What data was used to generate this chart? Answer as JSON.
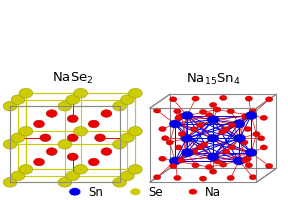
{
  "bg_color": "#ffffff",
  "title_left": "NaSe$_2$",
  "title_right": "Na$_{15}$Sn$_4$",
  "title_fontsize": 9.5,
  "colors": {
    "Sn": "#0000ee",
    "Se": "#cccc00",
    "Na": "#ee0000",
    "bond_na_se": "#ee0000",
    "bond_se_se": "#cccc00",
    "bond_sn": "#0000ee",
    "bond_sn_na": "#ee0000",
    "box": "#888888"
  },
  "legend": [
    {
      "label": "Sn",
      "color": "#0000ee"
    },
    {
      "label": "Se",
      "color": "#cccc00"
    },
    {
      "label": "Na",
      "color": "#ee0000"
    }
  ],
  "legend_fontsize": 8.5
}
